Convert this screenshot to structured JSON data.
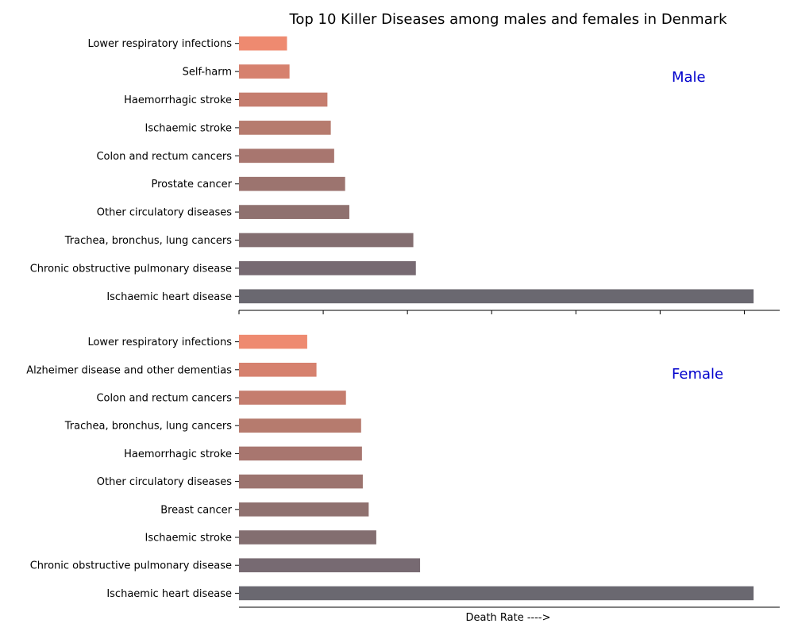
{
  "chart_data": {
    "type": "bar",
    "title": "Top 10 Killer Diseases among males and females in Denmark",
    "xlabel": "Death Rate ---->",
    "bar_colors": [
      "#6a6870",
      "#776a72",
      "#836e70",
      "#8f716f",
      "#9c746f",
      "#a8766f",
      "#b67b6e",
      "#c57d6e",
      "#d6816e",
      "#ee8a70"
    ],
    "title_color": "#000000",
    "panel_label_color": "#0000cc",
    "panels": [
      {
        "label": "Male",
        "categories": [
          "Ischaemic heart disease",
          "Chronic obstructive pulmonary disease",
          "Trachea, bronchus, lung cancers",
          "Other circulatory diseases",
          "Prostate cancer",
          "Colon and rectum cancers",
          "Ischaemic stroke",
          "Haemorrhagic stroke",
          "Self-harm",
          "Lower respiratory infections"
        ],
        "values": [
          611,
          210,
          207,
          131,
          126,
          113,
          109,
          105,
          60,
          57
        ]
      },
      {
        "label": "Female",
        "categories": [
          "Ischaemic heart disease",
          "Chronic obstructive pulmonary disease",
          "Ischaemic stroke",
          "Breast cancer",
          "Other circulatory diseases",
          "Haemorrhagic stroke",
          "Trachea, bronchus, lung cancers",
          "Colon and rectum cancers",
          "Alzheimer disease and other dementias",
          "Lower respiratory infections"
        ],
        "values": [
          611,
          215,
          163,
          154,
          147,
          146,
          145,
          127,
          92,
          81
        ]
      }
    ],
    "xlim": [
      0,
      642
    ],
    "x_ticks": [
      0,
      100,
      200,
      300,
      400,
      500,
      600
    ],
    "grid": false,
    "legend": "none"
  }
}
